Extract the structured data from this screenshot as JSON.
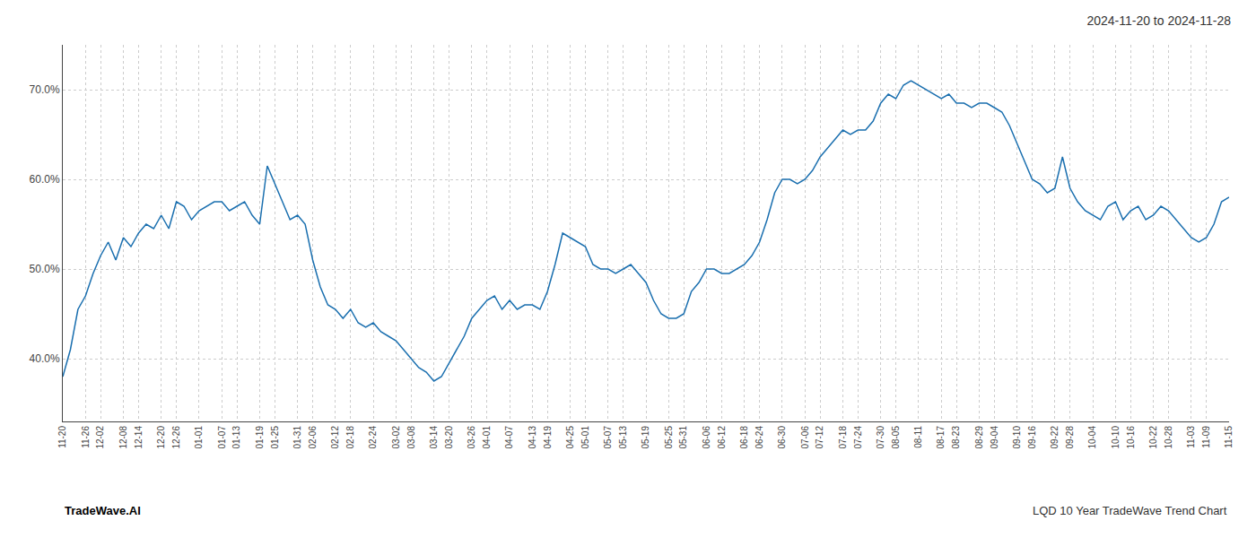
{
  "chart_data": {
    "type": "line",
    "title": "2024-11-20 to 2024-11-28",
    "annotations": [
      {
        "text": "TradeWave.AI"
      },
      {
        "text": "LQD 10 Year TradeWave Trend Chart"
      }
    ],
    "categories": [
      "11-20",
      null,
      null,
      "11-26",
      null,
      "12-02",
      null,
      null,
      "12-08",
      null,
      "12-14",
      null,
      null,
      "12-20",
      null,
      "12-26",
      null,
      null,
      "01-01",
      null,
      null,
      "01-07",
      null,
      "01-13",
      null,
      null,
      "01-19",
      null,
      "01-25",
      null,
      null,
      "01-31",
      null,
      "02-06",
      null,
      null,
      "02-12",
      null,
      "02-18",
      null,
      null,
      "02-24",
      null,
      null,
      "03-02",
      null,
      "03-08",
      null,
      null,
      "03-14",
      null,
      "03-20",
      null,
      null,
      "03-26",
      null,
      "04-01",
      null,
      null,
      "04-07",
      null,
      null,
      "04-13",
      null,
      "04-19",
      null,
      null,
      "04-25",
      null,
      "05-01",
      null,
      null,
      "05-07",
      null,
      "05-13",
      null,
      null,
      "05-19",
      null,
      null,
      "05-25",
      null,
      "05-31",
      null,
      null,
      "06-06",
      null,
      "06-12",
      null,
      null,
      "06-18",
      null,
      "06-24",
      null,
      null,
      "06-30",
      null,
      null,
      "07-06",
      null,
      "07-12",
      null,
      null,
      "07-18",
      null,
      "07-24",
      null,
      null,
      "07-30",
      null,
      "08-05",
      null,
      null,
      "08-11",
      null,
      null,
      "08-17",
      null,
      "08-23",
      null,
      null,
      "08-29",
      null,
      "09-04",
      null,
      null,
      "09-10",
      null,
      "09-16",
      null,
      null,
      "09-22",
      null,
      "09-28",
      null,
      null,
      "10-04",
      null,
      null,
      "10-10",
      null,
      "10-16",
      null,
      null,
      "10-22",
      null,
      "10-28",
      null,
      null,
      "11-03",
      null,
      "11-09",
      null,
      null,
      "11-15"
    ],
    "values": [
      38.0,
      41.0,
      45.5,
      47.0,
      49.5,
      51.5,
      53.0,
      51.0,
      53.5,
      52.5,
      54.0,
      55.0,
      54.5,
      56.0,
      54.5,
      57.5,
      57.0,
      55.5,
      56.5,
      57.0,
      57.5,
      57.5,
      56.5,
      57.0,
      57.5,
      56.0,
      55.0,
      61.5,
      59.5,
      57.5,
      55.5,
      56.0,
      55.0,
      51.0,
      48.0,
      46.0,
      45.5,
      44.5,
      45.5,
      44.0,
      43.5,
      44.0,
      43.0,
      42.5,
      42.0,
      41.0,
      40.0,
      39.0,
      38.5,
      37.5,
      38.0,
      39.5,
      41.0,
      42.5,
      44.5,
      45.5,
      46.5,
      47.0,
      45.5,
      46.5,
      45.5,
      46.0,
      46.0,
      45.5,
      47.5,
      50.5,
      54.0,
      53.5,
      53.0,
      52.5,
      50.5,
      50.0,
      50.0,
      49.5,
      50.0,
      50.5,
      49.5,
      48.5,
      46.5,
      45.0,
      44.5,
      44.5,
      45.0,
      47.5,
      48.5,
      50.0,
      50.0,
      49.5,
      49.5,
      50.0,
      50.5,
      51.5,
      53.0,
      55.5,
      58.5,
      60.0,
      60.0,
      59.5,
      60.0,
      61.0,
      62.5,
      63.5,
      64.5,
      65.5,
      65.0,
      65.5,
      65.5,
      66.5,
      68.5,
      69.5,
      69.0,
      70.5,
      71.0,
      70.5,
      70.0,
      69.5,
      69.0,
      69.5,
      68.5,
      68.5,
      68.0,
      68.5,
      68.5,
      68.0,
      67.5,
      66.0,
      64.0,
      62.0,
      60.0,
      59.5,
      58.5,
      59.0,
      62.5,
      59.0,
      57.5,
      56.5,
      56.0,
      55.5,
      57.0,
      57.5,
      55.5,
      56.5,
      57.0,
      55.5,
      56.0,
      57.0,
      56.5,
      55.5,
      54.5,
      53.5,
      53.0,
      53.5,
      55.0,
      57.5,
      58.0
    ],
    "color": "#1a6faf",
    "ylim": [
      33,
      75
    ],
    "yticks": [
      {
        "value": 40.0,
        "label": "40.0%"
      },
      {
        "value": 50.0,
        "label": "50.0%"
      },
      {
        "value": 60.0,
        "label": "60.0%"
      },
      {
        "value": 70.0,
        "label": "70.0%"
      }
    ],
    "grid": true
  }
}
